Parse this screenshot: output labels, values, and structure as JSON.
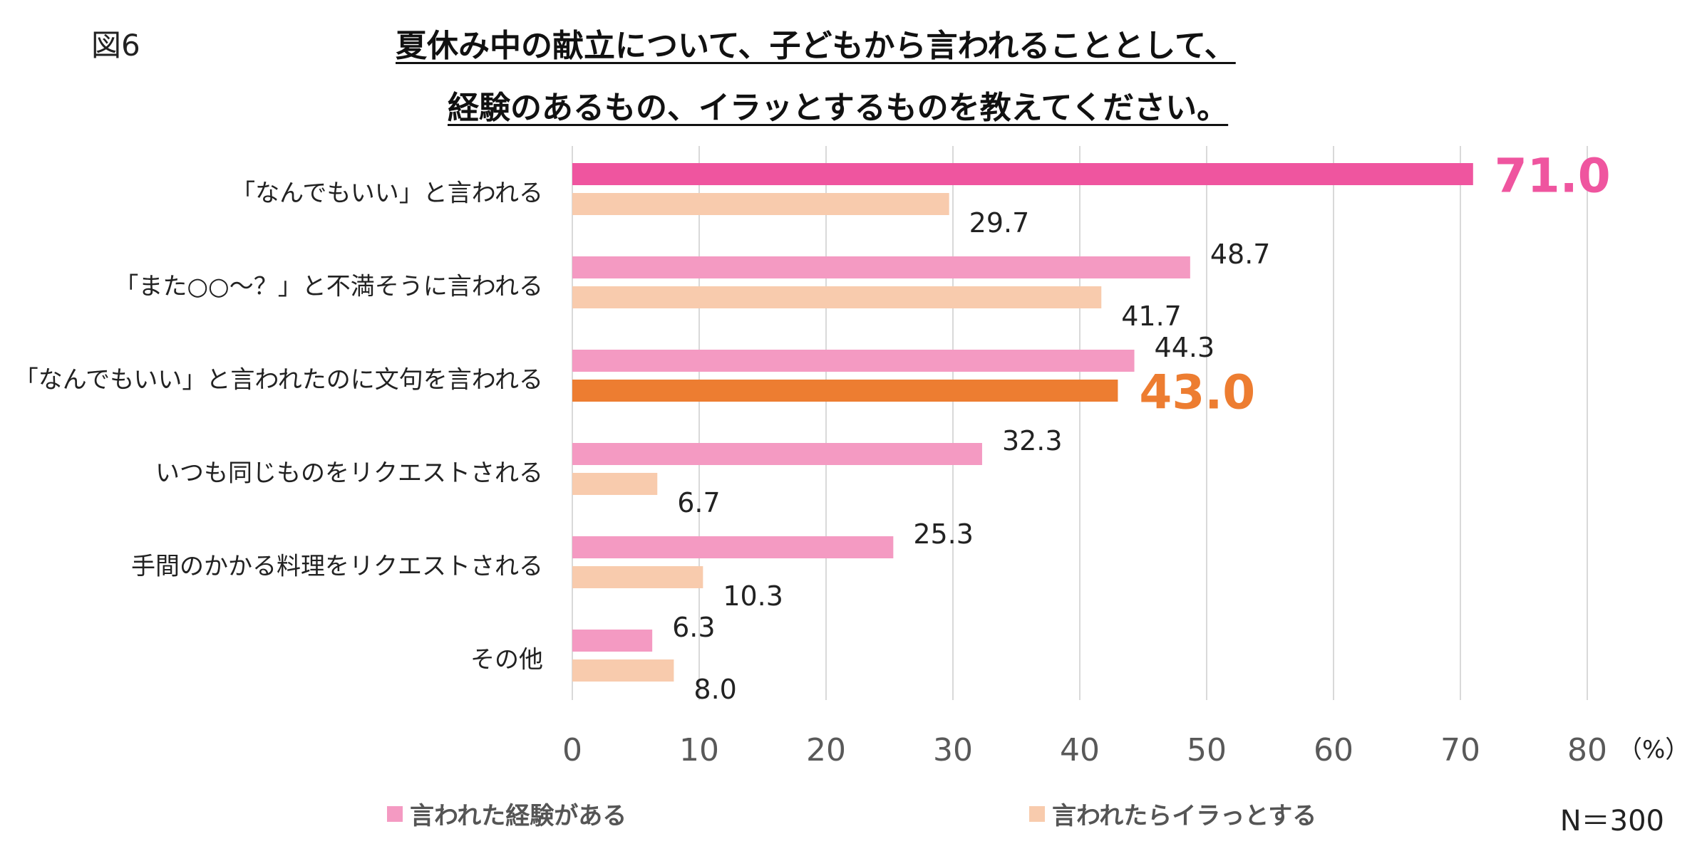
{
  "figure_label": "図6",
  "title": {
    "line1": "夏休み中の献立について、子どもから言われることとして、",
    "line2": "経験のあるもの、イラッとするものを教えてください。"
  },
  "n_label": "N＝300",
  "colors": {
    "experienced": "#F49AC2",
    "experienced_highlight": "#EF559F",
    "annoyed": "#F8CBAD",
    "annoyed_highlight": "#ED7D31",
    "grid": "#D9D9D9",
    "tick_text": "#595959"
  },
  "chart_data": {
    "type": "bar",
    "orientation": "horizontal",
    "title": "夏休み中の献立について、子どもから言われることとして、経験のあるもの、イラッとするものを教えてください。",
    "categories": [
      "「なんでもいい」と言われる",
      "「また○○～？」と不満そうに言われる",
      "「なんでもいい」と言われたのに文句を言われる",
      "いつも同じものをリクエストされる",
      "手間のかかる料理をリクエストされる",
      "その他"
    ],
    "series": [
      {
        "name": "言われた経験がある",
        "values": [
          71.0,
          48.7,
          44.3,
          32.3,
          25.3,
          6.3
        ],
        "labels": [
          "71.0",
          "48.7",
          "44.3",
          "32.3",
          "25.3",
          "6.3"
        ],
        "highlight_index": 0
      },
      {
        "name": "言われたらイラっとする",
        "values": [
          29.7,
          41.7,
          43.0,
          6.7,
          10.3,
          8.0
        ],
        "labels": [
          "29.7",
          "41.7",
          "43.0",
          "6.7",
          "10.3",
          "8.0"
        ],
        "highlight_index": 2
      }
    ],
    "xlim": [
      0,
      80
    ],
    "xticks": [
      "0",
      "10",
      "20",
      "30",
      "40",
      "50",
      "60",
      "70",
      "80"
    ],
    "xunit": "（%）",
    "grid": true,
    "legend": "bottom"
  }
}
